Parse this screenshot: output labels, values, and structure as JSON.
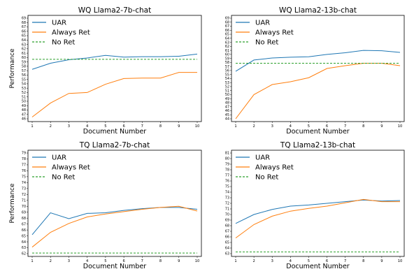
{
  "colors": {
    "uar": "#1f77b4",
    "always": "#ff7f0e",
    "noret": "#2ca02c"
  },
  "chart_data": [
    {
      "type": "line",
      "title": "WQ Llama2-7b-chat",
      "xlabel": "Document Number",
      "ylabel": "Performance",
      "x": [
        1,
        2,
        3,
        4,
        5,
        6,
        7,
        8,
        9,
        10
      ],
      "xlim": [
        1,
        10
      ],
      "ylim": [
        46,
        69
      ],
      "yticks": [
        46,
        47,
        48,
        49,
        50,
        51,
        52,
        53,
        54,
        55,
        56,
        57,
        58,
        59,
        60,
        61,
        62,
        63,
        64,
        65,
        66,
        67,
        68,
        69
      ],
      "legend": "top-left",
      "series": [
        {
          "name": "UAR",
          "style": "solid",
          "color": "#1f77b4",
          "values": [
            57.3,
            58.7,
            59.5,
            59.9,
            60.5,
            60.1,
            60.2,
            60.2,
            60.3,
            60.8
          ]
        },
        {
          "name": "Always Ret",
          "style": "solid",
          "color": "#ff7f0e",
          "values": [
            46.4,
            49.6,
            51.8,
            52.0,
            53.9,
            55.2,
            55.3,
            55.3,
            56.6,
            56.6
          ]
        },
        {
          "name": "No Ret",
          "style": "dashed",
          "color": "#2ca02c",
          "values": [
            59.6,
            59.6,
            59.6,
            59.6,
            59.6,
            59.6,
            59.6,
            59.6,
            59.6,
            59.6
          ]
        }
      ]
    },
    {
      "type": "line",
      "title": "WQ Llama2-13b-chat",
      "xlabel": "Document Number",
      "ylabel": "",
      "x": [
        1,
        2,
        3,
        4,
        5,
        6,
        7,
        8,
        9,
        10
      ],
      "xlim": [
        1,
        10
      ],
      "ylim": [
        44,
        69
      ],
      "yticks": [
        44,
        45,
        46,
        47,
        48,
        49,
        50,
        51,
        52,
        53,
        54,
        55,
        56,
        57,
        58,
        59,
        60,
        61,
        62,
        63,
        64,
        65,
        66,
        67,
        68,
        69
      ],
      "legend": "top-left",
      "series": [
        {
          "name": "UAR",
          "style": "solid",
          "color": "#1f77b4",
          "values": [
            55.8,
            58.6,
            59.1,
            59.3,
            59.4,
            60.0,
            60.4,
            61.0,
            60.9,
            60.5
          ]
        },
        {
          "name": "Always Ret",
          "style": "solid",
          "color": "#ff7f0e",
          "values": [
            44.0,
            50.0,
            52.5,
            53.2,
            54.2,
            56.5,
            57.2,
            57.8,
            57.8,
            57.2
          ]
        },
        {
          "name": "No Ret",
          "style": "dashed",
          "color": "#2ca02c",
          "values": [
            57.8,
            57.8,
            57.8,
            57.8,
            57.8,
            57.8,
            57.8,
            57.8,
            57.8,
            57.8
          ]
        }
      ]
    },
    {
      "type": "line",
      "title": "TQ Llama2-7b-chat",
      "xlabel": "Document Number",
      "ylabel": "Performance",
      "x": [
        1,
        2,
        3,
        4,
        5,
        6,
        7,
        8,
        9,
        10
      ],
      "xlim": [
        1,
        10
      ],
      "ylim": [
        62,
        79
      ],
      "yticks": [
        62,
        63,
        64,
        65,
        66,
        67,
        68,
        69,
        70,
        71,
        72,
        73,
        74,
        75,
        76,
        77,
        78,
        79
      ],
      "legend": "top-left",
      "series": [
        {
          "name": "UAR",
          "style": "solid",
          "color": "#1f77b4",
          "values": [
            65.2,
            68.9,
            67.9,
            68.8,
            68.9,
            69.3,
            69.6,
            69.8,
            69.8,
            69.5
          ]
        },
        {
          "name": "Always Ret",
          "style": "solid",
          "color": "#ff7f0e",
          "values": [
            63.1,
            65.6,
            67.1,
            68.2,
            68.7,
            69.1,
            69.5,
            69.8,
            70.0,
            69.2
          ]
        },
        {
          "name": "No Ret",
          "style": "dashed",
          "color": "#2ca02c",
          "values": [
            62.1,
            62.1,
            62.1,
            62.1,
            62.1,
            62.1,
            62.1,
            62.1,
            62.1,
            62.1
          ]
        }
      ]
    },
    {
      "type": "line",
      "title": "TQ Llama2-13b-chat",
      "xlabel": "Document Number",
      "ylabel": "",
      "x": [
        1,
        2,
        3,
        4,
        5,
        6,
        7,
        8,
        9,
        10
      ],
      "xlim": [
        1,
        10
      ],
      "ylim": [
        63,
        81
      ],
      "yticks": [
        63,
        64,
        65,
        66,
        67,
        68,
        69,
        70,
        71,
        72,
        73,
        74,
        75,
        76,
        77,
        78,
        79,
        80,
        81
      ],
      "legend": "top-left",
      "series": [
        {
          "name": "UAR",
          "style": "solid",
          "color": "#1f77b4",
          "values": [
            68.4,
            70.0,
            70.9,
            71.5,
            71.7,
            72.0,
            72.3,
            72.6,
            72.4,
            72.5
          ]
        },
        {
          "name": "Always Ret",
          "style": "solid",
          "color": "#ff7f0e",
          "values": [
            65.8,
            68.2,
            69.7,
            70.6,
            71.1,
            71.5,
            72.1,
            72.7,
            72.3,
            72.3
          ]
        },
        {
          "name": "No Ret",
          "style": "dashed",
          "color": "#2ca02c",
          "values": [
            63.3,
            63.3,
            63.3,
            63.3,
            63.3,
            63.3,
            63.3,
            63.3,
            63.3,
            63.3
          ]
        }
      ]
    }
  ]
}
